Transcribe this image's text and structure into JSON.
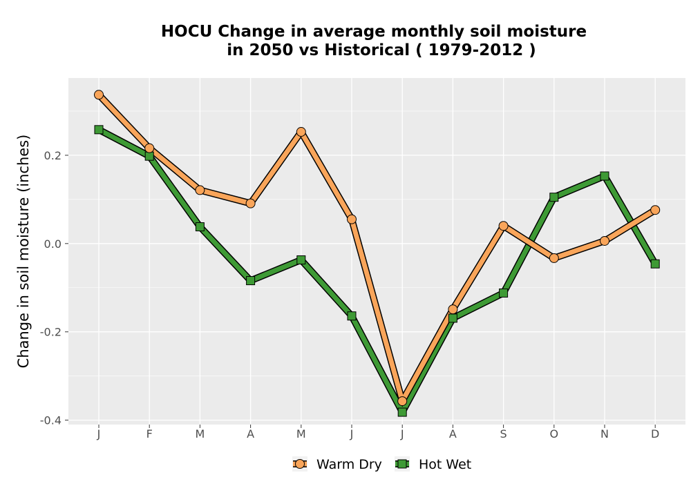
{
  "chart_data": {
    "type": "line",
    "title_lines": [
      "HOCU  Change in average monthly soil moisture",
      "in 2050 vs Historical ( 1979-2012 )"
    ],
    "xlabel": "",
    "ylabel": "Change in soil moisture (inches)",
    "categories": [
      "J",
      "F",
      "M",
      "A",
      "M",
      "J",
      "J",
      "A",
      "S",
      "O",
      "N",
      "D"
    ],
    "ylim": [
      -0.41,
      0.375
    ],
    "yticks": [
      -0.4,
      -0.2,
      0.0,
      0.2
    ],
    "ytick_labels": [
      "-0.4",
      "-0.2",
      "0.0",
      "0.2"
    ],
    "grid": true,
    "legend_position": "bottom",
    "series": [
      {
        "name": "Warm Dry",
        "marker": "circle",
        "color": "#f9a55a",
        "values": [
          0.337,
          0.216,
          0.121,
          0.091,
          0.253,
          0.055,
          -0.357,
          -0.149,
          0.04,
          -0.033,
          0.006,
          0.076
        ]
      },
      {
        "name": "Hot Wet",
        "marker": "square",
        "color": "#3e9a35",
        "values": [
          0.258,
          0.198,
          0.038,
          -0.084,
          -0.037,
          -0.164,
          -0.382,
          -0.169,
          -0.112,
          0.105,
          0.153,
          -0.046
        ]
      }
    ]
  },
  "colors": {
    "panel_background": "#ebebeb",
    "grid_major": "#ffffff",
    "outline": "#000000"
  }
}
